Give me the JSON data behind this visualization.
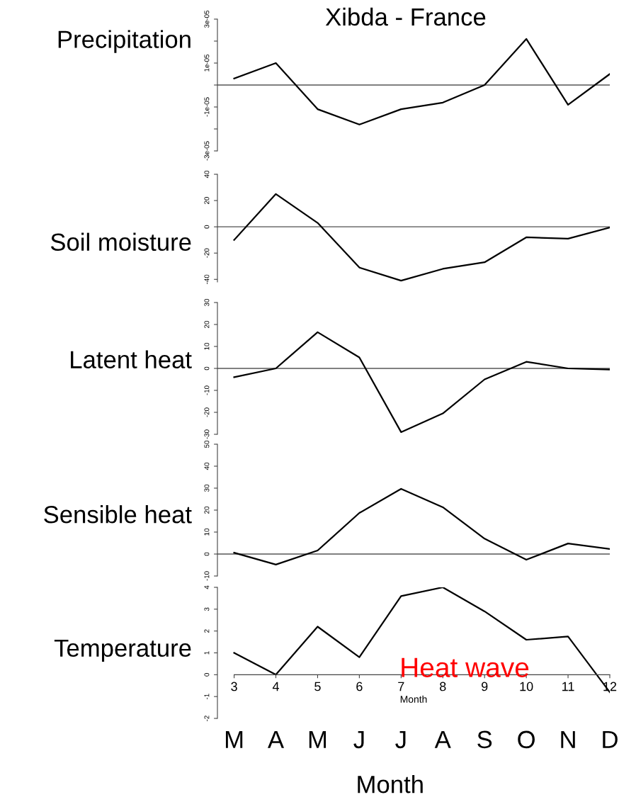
{
  "chart_data": [
    {
      "type": "line",
      "title": "Xibda - France",
      "ylabel": "Precipitation",
      "x": [
        3,
        4,
        5,
        6,
        7,
        8,
        9,
        10,
        11,
        12
      ],
      "ylim": [
        -3e-05,
        3e-05
      ],
      "tick_labels": "y",
      "yticks": [
        {
          "value": -3e-05,
          "label": "-3e-05"
        },
        {
          "value": -2e-05,
          "label": null
        },
        {
          "value": -1e-05,
          "label": "-1e-05"
        },
        {
          "value": 0,
          "label": null
        },
        {
          "value": 1e-05,
          "label": "1e-05"
        },
        {
          "value": 2e-05,
          "label": null
        },
        {
          "value": 3e-05,
          "label": "3e-05"
        }
      ],
      "ref_lines": [
        {
          "axis": "y",
          "value": 0,
          "color": "#808080"
        }
      ],
      "series": [
        {
          "color": "#000000",
          "values": [
            3e-06,
            1e-05,
            -1.1e-05,
            -1.8e-05,
            -1.1e-05,
            -8e-06,
            0,
            2.1e-05,
            -9e-06,
            5e-06
          ]
        }
      ]
    },
    {
      "type": "line",
      "ylabel": "Soil moisture",
      "x": [
        3,
        4,
        5,
        6,
        7,
        8,
        9,
        10,
        11,
        12
      ],
      "ylim": [
        -42,
        40
      ],
      "tick_labels": "y",
      "yticks": [
        -40,
        -20,
        0,
        20,
        40
      ],
      "ref_lines": [
        {
          "axis": "y",
          "value": 0,
          "color": "#808080"
        }
      ],
      "series": [
        {
          "color": "#000000",
          "values": [
            -10,
            25,
            3,
            -31,
            -41,
            -32,
            -27,
            -8,
            -9,
            -0.5
          ]
        }
      ]
    },
    {
      "type": "line",
      "ylabel": "Latent heat",
      "x": [
        3,
        4,
        5,
        6,
        7,
        8,
        9,
        10,
        11,
        12
      ],
      "ylim": [
        -30,
        30
      ],
      "tick_labels": "y",
      "yticks": [
        -30,
        -20,
        -10,
        0,
        10,
        20,
        30
      ],
      "ref_lines": [
        {
          "axis": "y",
          "value": 0,
          "color": "#808080"
        }
      ],
      "series": [
        {
          "color": "#000000",
          "values": [
            -4,
            0,
            16.5,
            5,
            -29,
            -20.5,
            -5,
            3,
            0,
            -0.5
          ]
        }
      ]
    },
    {
      "type": "line",
      "ylabel": "Sensible heat",
      "x": [
        3,
        4,
        5,
        6,
        7,
        8,
        9,
        10,
        11,
        12
      ],
      "ylim": [
        -10,
        50
      ],
      "tick_labels": "y",
      "yticks": [
        -10,
        0,
        10,
        20,
        30,
        40,
        50
      ],
      "ref_lines": [
        {
          "axis": "y",
          "value": 0,
          "color": "#808080"
        }
      ],
      "series": [
        {
          "color": "#000000",
          "values": [
            0.6,
            -4.8,
            1.6,
            18.7,
            29.7,
            21.3,
            7,
            -2.6,
            4.8,
            2.3
          ]
        }
      ]
    },
    {
      "type": "line",
      "ylabel": "Temperature",
      "xlabel": "Month",
      "x": [
        3,
        4,
        5,
        6,
        7,
        8,
        9,
        10,
        11,
        12
      ],
      "xlim": [
        2.6,
        12
      ],
      "ylim": [
        -2,
        4
      ],
      "xticks": [
        3,
        4,
        5,
        6,
        7,
        8,
        9,
        10,
        11,
        12
      ],
      "yticks": [
        -2,
        -1,
        0,
        1,
        2,
        3,
        4
      ],
      "annotations": [
        "Heat wave",
        "Month",
        "M",
        "A",
        "M",
        "J",
        "J",
        "A",
        "S",
        "O",
        "N",
        "D"
      ],
      "series": [
        {
          "color": "#000000",
          "values": [
            1.0,
            0,
            2.2,
            0.8,
            3.6,
            4.0,
            2.9,
            1.6,
            1.75,
            -0.8
          ]
        }
      ]
    }
  ]
}
